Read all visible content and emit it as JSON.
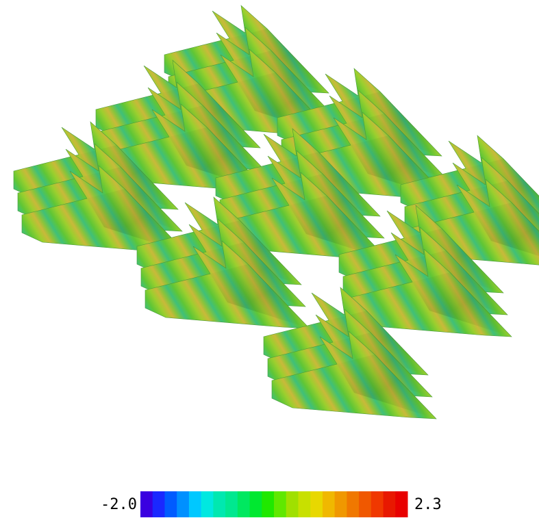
{
  "colorbar": {
    "min_label": "-2.0",
    "max_label": "2.3"
  }
}
